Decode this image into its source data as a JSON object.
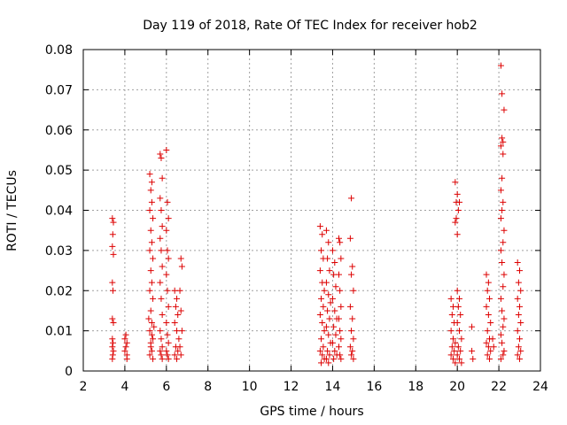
{
  "chart_data": {
    "type": "scatter",
    "title": "Day 119 of 2018, Rate Of TEC Index for receiver hob2",
    "xlabel": "GPS time / hours",
    "ylabel": "ROTI / TECUs",
    "xlim": [
      2,
      24
    ],
    "ylim": [
      0,
      0.08
    ],
    "x_ticks": [
      2,
      4,
      6,
      8,
      10,
      12,
      14,
      16,
      18,
      20,
      22,
      24
    ],
    "y_ticks": [
      0,
      0.01,
      0.02,
      0.03,
      0.04,
      0.05,
      0.06,
      0.07,
      0.08
    ],
    "x_tick_labels": [
      "2",
      "4",
      "6",
      "8",
      "10",
      "12",
      "14",
      "16",
      "18",
      "20",
      "22",
      "24"
    ],
    "y_tick_labels": [
      "0",
      "0.01",
      "0.02",
      "0.03",
      "0.04",
      "0.05",
      "0.06",
      "0.07",
      "0.08"
    ],
    "grid": true,
    "marker": "+",
    "marker_color": "#dd0000",
    "series": [
      {
        "name": "hob2",
        "points": [
          [
            3.4,
            0.038
          ],
          [
            3.45,
            0.037
          ],
          [
            3.42,
            0.034
          ],
          [
            3.4,
            0.031
          ],
          [
            3.45,
            0.029
          ],
          [
            3.4,
            0.022
          ],
          [
            3.43,
            0.02
          ],
          [
            3.4,
            0.013
          ],
          [
            3.45,
            0.012
          ],
          [
            3.4,
            0.008
          ],
          [
            3.43,
            0.007
          ],
          [
            3.4,
            0.006
          ],
          [
            3.45,
            0.005
          ],
          [
            3.42,
            0.004
          ],
          [
            3.4,
            0.003
          ],
          [
            4.0,
            0.008
          ],
          [
            4.1,
            0.007
          ],
          [
            4.05,
            0.006
          ],
          [
            4.0,
            0.005
          ],
          [
            4.1,
            0.004
          ],
          [
            4.05,
            0.009
          ],
          [
            4.1,
            0.003
          ],
          [
            5.2,
            0.049
          ],
          [
            5.3,
            0.047
          ],
          [
            5.25,
            0.045
          ],
          [
            5.3,
            0.042
          ],
          [
            5.2,
            0.04
          ],
          [
            5.35,
            0.038
          ],
          [
            5.25,
            0.035
          ],
          [
            5.3,
            0.032
          ],
          [
            5.2,
            0.03
          ],
          [
            5.35,
            0.028
          ],
          [
            5.25,
            0.025
          ],
          [
            5.3,
            0.022
          ],
          [
            5.2,
            0.02
          ],
          [
            5.35,
            0.018
          ],
          [
            5.25,
            0.015
          ],
          [
            5.3,
            0.012
          ],
          [
            5.2,
            0.01
          ],
          [
            5.35,
            0.008
          ],
          [
            5.25,
            0.006
          ],
          [
            5.3,
            0.005
          ],
          [
            5.2,
            0.004
          ],
          [
            5.35,
            0.003
          ],
          [
            5.25,
            0.007
          ],
          [
            5.3,
            0.009
          ],
          [
            5.4,
            0.011
          ],
          [
            5.15,
            0.013
          ],
          [
            5.7,
            0.054
          ],
          [
            5.75,
            0.053
          ],
          [
            5.8,
            0.048
          ],
          [
            5.7,
            0.043
          ],
          [
            5.75,
            0.04
          ],
          [
            5.8,
            0.036
          ],
          [
            5.7,
            0.033
          ],
          [
            5.75,
            0.03
          ],
          [
            5.8,
            0.026
          ],
          [
            5.7,
            0.022
          ],
          [
            5.75,
            0.018
          ],
          [
            5.8,
            0.014
          ],
          [
            5.7,
            0.01
          ],
          [
            5.75,
            0.008
          ],
          [
            5.8,
            0.006
          ],
          [
            5.7,
            0.005
          ],
          [
            5.75,
            0.004
          ],
          [
            5.8,
            0.003
          ],
          [
            6.0,
            0.055
          ],
          [
            6.05,
            0.042
          ],
          [
            6.1,
            0.038
          ],
          [
            6.0,
            0.035
          ],
          [
            6.05,
            0.03
          ],
          [
            6.1,
            0.028
          ],
          [
            6.0,
            0.024
          ],
          [
            6.05,
            0.02
          ],
          [
            6.1,
            0.016
          ],
          [
            6.0,
            0.012
          ],
          [
            6.05,
            0.009
          ],
          [
            6.1,
            0.007
          ],
          [
            6.0,
            0.005
          ],
          [
            6.05,
            0.004
          ],
          [
            6.1,
            0.003
          ],
          [
            6.4,
            0.02
          ],
          [
            6.5,
            0.018
          ],
          [
            6.45,
            0.016
          ],
          [
            6.55,
            0.014
          ],
          [
            6.4,
            0.012
          ],
          [
            6.5,
            0.01
          ],
          [
            6.6,
            0.008
          ],
          [
            6.45,
            0.006
          ],
          [
            6.55,
            0.005
          ],
          [
            6.4,
            0.004
          ],
          [
            6.5,
            0.003
          ],
          [
            6.7,
            0.028
          ],
          [
            6.75,
            0.026
          ],
          [
            6.65,
            0.02
          ],
          [
            6.7,
            0.015
          ],
          [
            6.75,
            0.01
          ],
          [
            6.65,
            0.006
          ],
          [
            6.7,
            0.004
          ],
          [
            13.4,
            0.036
          ],
          [
            13.5,
            0.034
          ],
          [
            13.45,
            0.03
          ],
          [
            13.55,
            0.028
          ],
          [
            13.4,
            0.025
          ],
          [
            13.5,
            0.022
          ],
          [
            13.6,
            0.02
          ],
          [
            13.45,
            0.018
          ],
          [
            13.55,
            0.016
          ],
          [
            13.4,
            0.014
          ],
          [
            13.5,
            0.012
          ],
          [
            13.6,
            0.01
          ],
          [
            13.45,
            0.008
          ],
          [
            13.55,
            0.006
          ],
          [
            13.4,
            0.005
          ],
          [
            13.5,
            0.004
          ],
          [
            13.6,
            0.003
          ],
          [
            13.45,
            0.002
          ],
          [
            13.7,
            0.035
          ],
          [
            13.8,
            0.032
          ],
          [
            13.75,
            0.028
          ],
          [
            13.85,
            0.025
          ],
          [
            13.7,
            0.022
          ],
          [
            13.8,
            0.019
          ],
          [
            13.9,
            0.017
          ],
          [
            13.75,
            0.015
          ],
          [
            13.85,
            0.013
          ],
          [
            13.7,
            0.011
          ],
          [
            13.8,
            0.009
          ],
          [
            13.9,
            0.007
          ],
          [
            13.75,
            0.005
          ],
          [
            13.85,
            0.004
          ],
          [
            13.7,
            0.003
          ],
          [
            13.8,
            0.002
          ],
          [
            14.0,
            0.03
          ],
          [
            14.1,
            0.027
          ],
          [
            14.05,
            0.024
          ],
          [
            14.15,
            0.021
          ],
          [
            14.0,
            0.018
          ],
          [
            14.1,
            0.015
          ],
          [
            14.2,
            0.013
          ],
          [
            14.05,
            0.011
          ],
          [
            14.15,
            0.009
          ],
          [
            14.0,
            0.007
          ],
          [
            14.1,
            0.005
          ],
          [
            14.2,
            0.004
          ],
          [
            14.05,
            0.003
          ],
          [
            14.3,
            0.033
          ],
          [
            14.35,
            0.032
          ],
          [
            14.4,
            0.028
          ],
          [
            14.3,
            0.024
          ],
          [
            14.35,
            0.02
          ],
          [
            14.4,
            0.016
          ],
          [
            14.3,
            0.013
          ],
          [
            14.35,
            0.01
          ],
          [
            14.4,
            0.008
          ],
          [
            14.3,
            0.006
          ],
          [
            14.35,
            0.004
          ],
          [
            14.4,
            0.003
          ],
          [
            14.9,
            0.043
          ],
          [
            14.85,
            0.033
          ],
          [
            14.95,
            0.026
          ],
          [
            14.9,
            0.024
          ],
          [
            15.0,
            0.02
          ],
          [
            14.85,
            0.016
          ],
          [
            14.95,
            0.013
          ],
          [
            14.9,
            0.01
          ],
          [
            15.0,
            0.008
          ],
          [
            14.85,
            0.006
          ],
          [
            14.95,
            0.005
          ],
          [
            14.9,
            0.004
          ],
          [
            15.0,
            0.003
          ],
          [
            19.9,
            0.047
          ],
          [
            20.0,
            0.044
          ],
          [
            19.95,
            0.042
          ],
          [
            20.05,
            0.04
          ],
          [
            19.9,
            0.037
          ],
          [
            20.0,
            0.034
          ],
          [
            20.1,
            0.042
          ],
          [
            19.95,
            0.038
          ],
          [
            19.7,
            0.018
          ],
          [
            19.8,
            0.016
          ],
          [
            19.75,
            0.014
          ],
          [
            19.85,
            0.012
          ],
          [
            19.7,
            0.01
          ],
          [
            19.8,
            0.008
          ],
          [
            19.9,
            0.007
          ],
          [
            19.75,
            0.006
          ],
          [
            19.85,
            0.005
          ],
          [
            19.7,
            0.004
          ],
          [
            19.8,
            0.003
          ],
          [
            19.9,
            0.002
          ],
          [
            20.0,
            0.02
          ],
          [
            20.1,
            0.018
          ],
          [
            20.05,
            0.016
          ],
          [
            20.15,
            0.014
          ],
          [
            20.0,
            0.012
          ],
          [
            20.1,
            0.01
          ],
          [
            20.2,
            0.008
          ],
          [
            20.05,
            0.006
          ],
          [
            20.15,
            0.005
          ],
          [
            20.0,
            0.004
          ],
          [
            20.1,
            0.003
          ],
          [
            20.2,
            0.002
          ],
          [
            20.7,
            0.011
          ],
          [
            20.7,
            0.005
          ],
          [
            20.75,
            0.003
          ],
          [
            21.4,
            0.024
          ],
          [
            21.5,
            0.022
          ],
          [
            21.45,
            0.02
          ],
          [
            21.55,
            0.018
          ],
          [
            21.4,
            0.016
          ],
          [
            21.5,
            0.014
          ],
          [
            21.6,
            0.012
          ],
          [
            21.45,
            0.01
          ],
          [
            21.55,
            0.008
          ],
          [
            21.4,
            0.007
          ],
          [
            21.5,
            0.006
          ],
          [
            21.6,
            0.005
          ],
          [
            21.45,
            0.004
          ],
          [
            21.55,
            0.003
          ],
          [
            21.7,
            0.008
          ],
          [
            21.75,
            0.006
          ],
          [
            22.1,
            0.076
          ],
          [
            22.15,
            0.069
          ],
          [
            22.25,
            0.065
          ],
          [
            22.15,
            0.058
          ],
          [
            22.2,
            0.057
          ],
          [
            22.1,
            0.056
          ],
          [
            22.2,
            0.054
          ],
          [
            22.15,
            0.048
          ],
          [
            22.1,
            0.045
          ],
          [
            22.2,
            0.042
          ],
          [
            22.15,
            0.04
          ],
          [
            22.1,
            0.038
          ],
          [
            22.25,
            0.035
          ],
          [
            22.2,
            0.032
          ],
          [
            22.1,
            0.03
          ],
          [
            22.15,
            0.027
          ],
          [
            22.25,
            0.024
          ],
          [
            22.2,
            0.021
          ],
          [
            22.1,
            0.018
          ],
          [
            22.15,
            0.015
          ],
          [
            22.25,
            0.013
          ],
          [
            22.2,
            0.011
          ],
          [
            22.1,
            0.009
          ],
          [
            22.15,
            0.007
          ],
          [
            22.25,
            0.005
          ],
          [
            22.2,
            0.004
          ],
          [
            22.1,
            0.003
          ],
          [
            22.9,
            0.027
          ],
          [
            23.0,
            0.025
          ],
          [
            22.95,
            0.022
          ],
          [
            23.05,
            0.02
          ],
          [
            22.9,
            0.018
          ],
          [
            23.0,
            0.016
          ],
          [
            22.95,
            0.014
          ],
          [
            23.05,
            0.012
          ],
          [
            22.9,
            0.01
          ],
          [
            23.0,
            0.008
          ],
          [
            22.95,
            0.006
          ],
          [
            23.05,
            0.005
          ],
          [
            22.9,
            0.004
          ],
          [
            23.0,
            0.003
          ]
        ]
      }
    ]
  }
}
